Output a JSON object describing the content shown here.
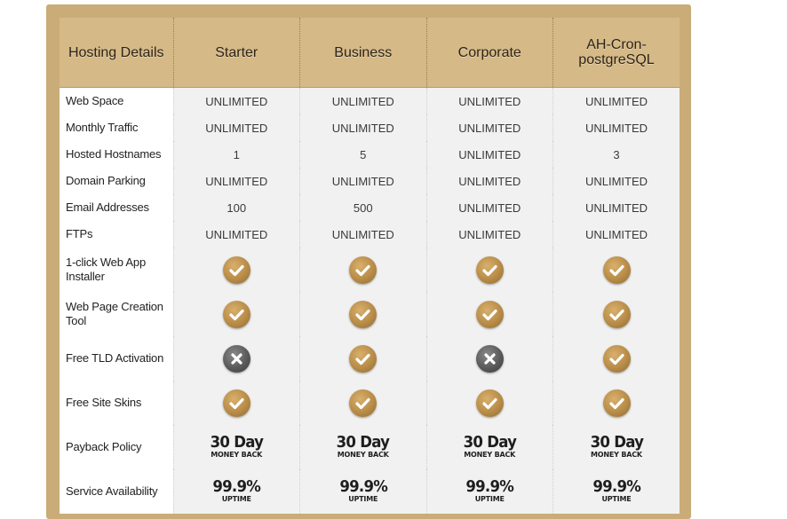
{
  "header": {
    "details_label": "Hosting Details",
    "plans": [
      "Starter",
      "Business",
      "Corporate",
      "AH-Cron-postgreSQL"
    ]
  },
  "rows": [
    {
      "label": "Web Space",
      "values": [
        "UNLIMITED",
        "UNLIMITED",
        "UNLIMITED",
        "UNLIMITED"
      ]
    },
    {
      "label": "Monthly Traffic",
      "values": [
        "UNLIMITED",
        "UNLIMITED",
        "UNLIMITED",
        "UNLIMITED"
      ]
    },
    {
      "label": "Hosted Hostnames",
      "values": [
        "1",
        "5",
        "UNLIMITED",
        "3"
      ]
    },
    {
      "label": "Domain Parking",
      "values": [
        "UNLIMITED",
        "UNLIMITED",
        "UNLIMITED",
        "UNLIMITED"
      ]
    },
    {
      "label": "Email Addresses",
      "values": [
        "100",
        "500",
        "UNLIMITED",
        "UNLIMITED"
      ]
    },
    {
      "label": "FTPs",
      "values": [
        "UNLIMITED",
        "UNLIMITED",
        "UNLIMITED",
        "UNLIMITED"
      ]
    },
    {
      "label": "1-click Web App Installer",
      "values": [
        "check-icon",
        "check-icon",
        "check-icon",
        "check-icon"
      ]
    },
    {
      "label": "Web Page Creation Tool",
      "values": [
        "check-icon",
        "check-icon",
        "check-icon",
        "check-icon"
      ]
    },
    {
      "label": "Free TLD Activation",
      "values": [
        "cross-icon",
        "check-icon",
        "cross-icon",
        "check-icon"
      ]
    },
    {
      "label": "Free Site Skins",
      "values": [
        "check-icon",
        "check-icon",
        "check-icon",
        "check-icon"
      ]
    },
    {
      "label": "Payback Policy",
      "badge": {
        "big": "30 Day",
        "small": "MONEY BACK"
      }
    },
    {
      "label": "Service Availability",
      "badge": {
        "big": "99.9%",
        "small": "UPTIME"
      }
    }
  ],
  "colors": {
    "frame": "#c9ac78",
    "header": "#d5b987",
    "check": "#b88c47",
    "cross": "#5a5a5a"
  }
}
